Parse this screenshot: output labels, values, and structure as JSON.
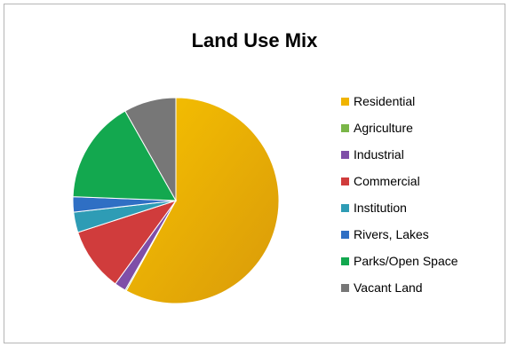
{
  "chart_data": {
    "type": "pie",
    "title": "Land Use Mix",
    "legend_position": "right",
    "slices": [
      {
        "label": "Residential",
        "value": 58.0,
        "color": "#f0b400"
      },
      {
        "label": "Agriculture",
        "value": 0.2,
        "color": "#7ab648"
      },
      {
        "label": "Industrial",
        "value": 1.8,
        "color": "#7f4ea8"
      },
      {
        "label": "Commercial",
        "value": 10.0,
        "color": "#d03c3c"
      },
      {
        "label": "Institution",
        "value": 3.2,
        "color": "#2e9cb5"
      },
      {
        "label": "Rivers, Lakes",
        "value": 2.4,
        "color": "#2f6fc4"
      },
      {
        "label": "Parks/Open Space",
        "value": 16.2,
        "color": "#13a84f"
      },
      {
        "label": "Vacant Land",
        "value": 8.2,
        "color": "#777777"
      }
    ]
  }
}
